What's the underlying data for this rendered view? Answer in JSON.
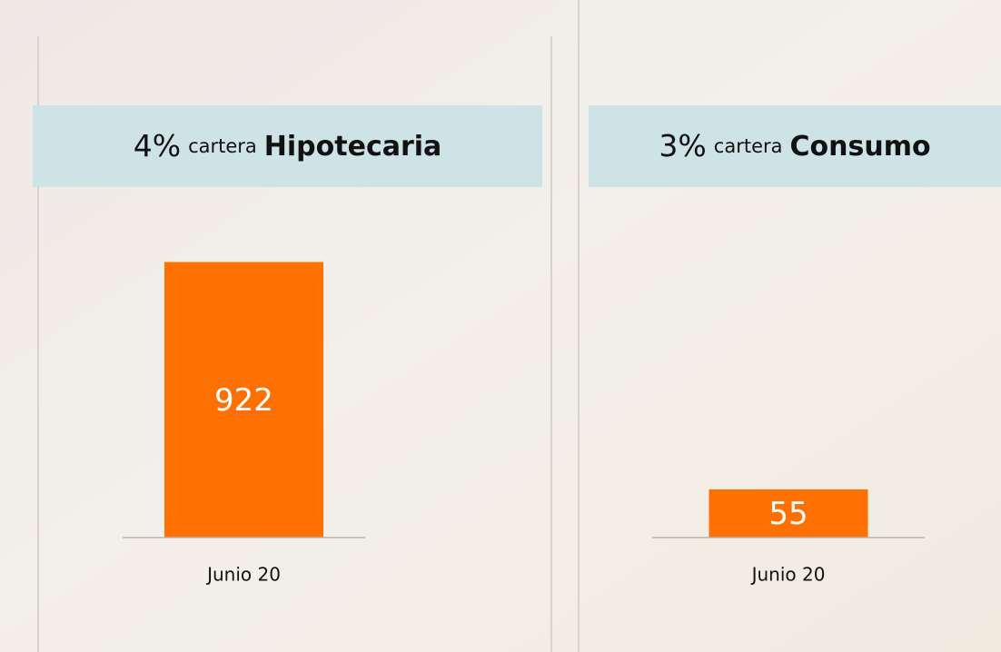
{
  "chart_data": [
    {
      "type": "bar",
      "title": {
        "percent": "4%",
        "label": "cartera",
        "segment": "Hipotecaria"
      },
      "categories": [
        "Junio 20"
      ],
      "values": [
        922
      ],
      "color": "#ff7003",
      "ylim": [
        0,
        1100
      ]
    },
    {
      "type": "bar",
      "title": {
        "percent": "3%",
        "label": "cartera",
        "segment": "Consumo"
      },
      "categories": [
        "Junio 20"
      ],
      "values": [
        55
      ],
      "color": "#ff7003",
      "ylim": [
        0,
        375
      ]
    }
  ]
}
